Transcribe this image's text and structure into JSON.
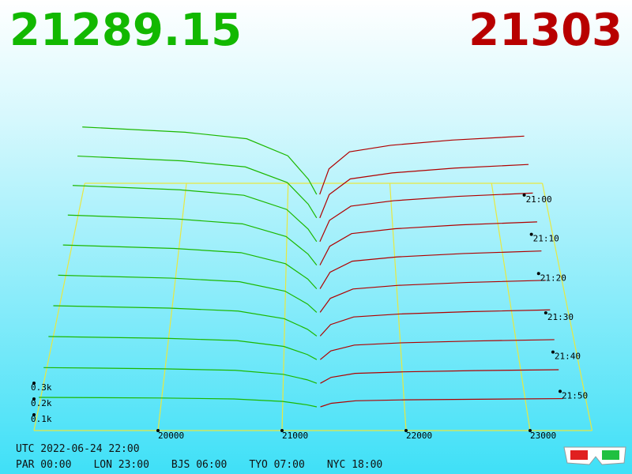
{
  "header": {
    "bid": "21289.15",
    "ask": "21303"
  },
  "footer": {
    "utc": "UTC 2022-06-24 22:00",
    "cities": [
      "PAR 00:00",
      "LON 23:00",
      "BJS 06:00",
      "TYO 07:00",
      "NYC 18:00"
    ]
  },
  "chart_data": {
    "type": "depth3d",
    "bid_color": "#1cb800",
    "ask_color": "#b00000",
    "floor_color": "#e8e840",
    "bid_prices": [
      19000,
      20000,
      20600,
      21000,
      21200,
      21280
    ],
    "ask_prices": [
      21310,
      21400,
      21600,
      22000,
      22600,
      23300
    ],
    "xlim": [
      19000,
      23500
    ],
    "xticks": [
      20000,
      21000,
      22000,
      23000
    ],
    "tlim": [
      -3,
      60
    ],
    "tticks": [
      {
        "value": 0,
        "label": "21:00"
      },
      {
        "value": 10,
        "label": "21:10"
      },
      {
        "value": 20,
        "label": "21:20"
      },
      {
        "value": 30,
        "label": "21:30"
      },
      {
        "value": 40,
        "label": "21:40"
      },
      {
        "value": 50,
        "label": "21:50"
      }
    ],
    "zticks": [
      {
        "value": 100,
        "label": "0.1k"
      },
      {
        "value": 200,
        "label": "0.2k"
      },
      {
        "value": 300,
        "label": "0.3k"
      }
    ],
    "snapshots": [
      {
        "t": 0,
        "bids": [
          520,
          480,
          430,
          300,
          120,
          5
        ],
        "asks": [
          5,
          200,
          330,
          380,
          420,
          450
        ]
      },
      {
        "t": 6,
        "bids": [
          468,
          432,
          387,
          270,
          108,
          5
        ],
        "asks": [
          5,
          180,
          297,
          342,
          378,
          405
        ]
      },
      {
        "t": 12,
        "bids": [
          416,
          384,
          344,
          240,
          96,
          4
        ],
        "asks": [
          4,
          160,
          264,
          304,
          336,
          360
        ]
      },
      {
        "t": 18,
        "bids": [
          364,
          336,
          301,
          210,
          84,
          4
        ],
        "asks": [
          4,
          140,
          231,
          266,
          294,
          315
        ]
      },
      {
        "t": 24,
        "bids": [
          312,
          288,
          258,
          180,
          72,
          3
        ],
        "asks": [
          3,
          120,
          198,
          228,
          252,
          270
        ]
      },
      {
        "t": 30,
        "bids": [
          260,
          240,
          215,
          150,
          60,
          3
        ],
        "asks": [
          3,
          100,
          165,
          190,
          210,
          225
        ]
      },
      {
        "t": 36,
        "bids": [
          208,
          192,
          172,
          120,
          48,
          2
        ],
        "asks": [
          2,
          80,
          132,
          152,
          168,
          180
        ]
      },
      {
        "t": 42,
        "bids": [
          156,
          144,
          129,
          90,
          36,
          2
        ],
        "asks": [
          2,
          60,
          99,
          114,
          126,
          135
        ]
      },
      {
        "t": 48,
        "bids": [
          104,
          96,
          86,
          60,
          24,
          1
        ],
        "asks": [
          1,
          40,
          66,
          76,
          84,
          90
        ]
      },
      {
        "t": 54,
        "bids": [
          62,
          58,
          52,
          36,
          14,
          1
        ],
        "asks": [
          1,
          24,
          40,
          46,
          50,
          54
        ]
      }
    ]
  }
}
